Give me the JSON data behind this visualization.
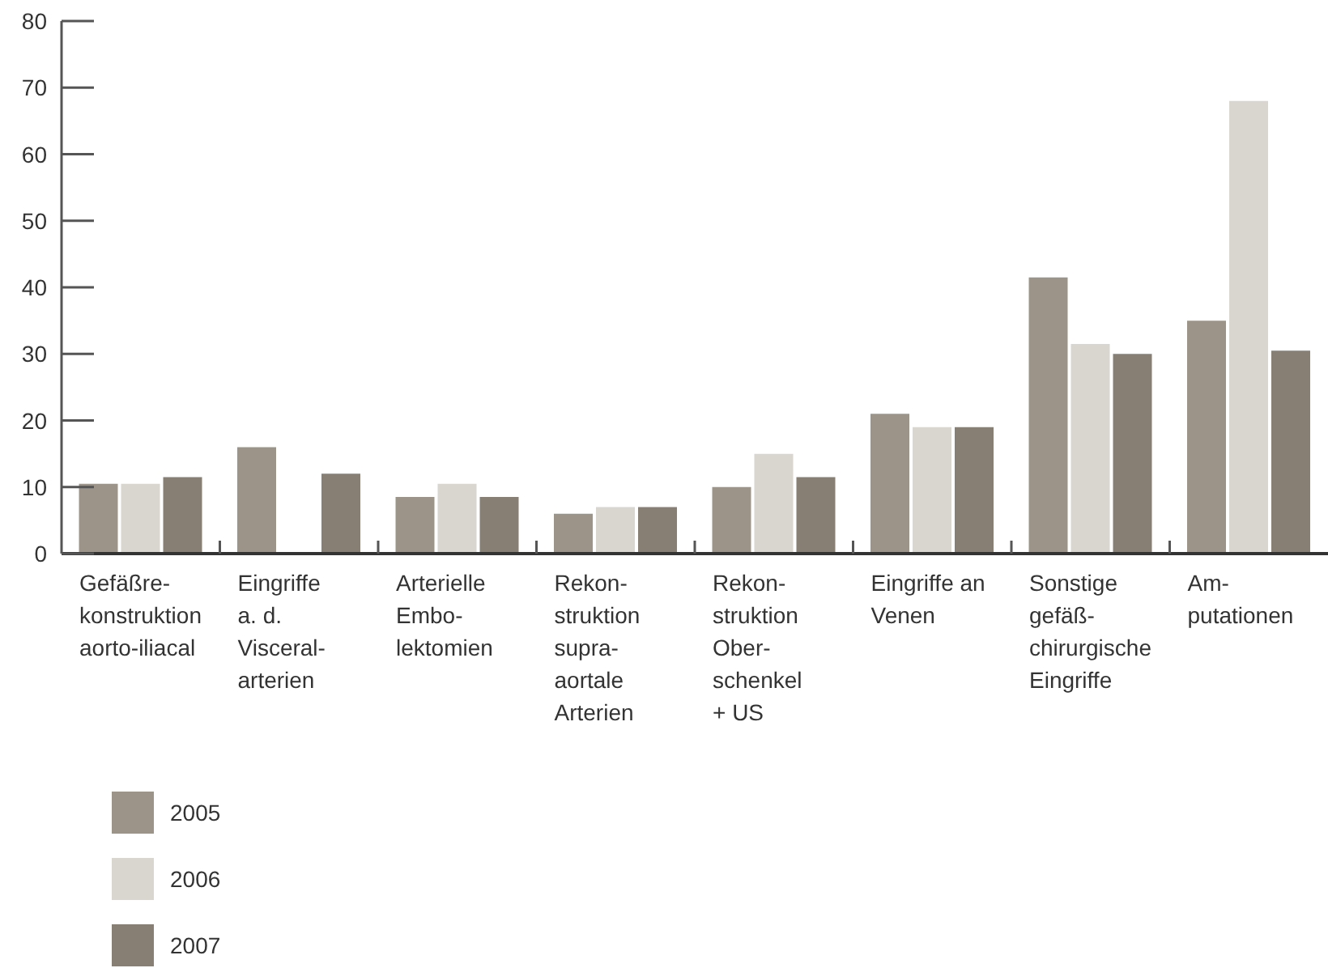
{
  "chart_data": {
    "type": "bar",
    "categories": [
      "Gefäßre-\nkonstruktion\naorto-iliacal",
      "Eingriffe\na. d.\nVisceral-\narterien",
      "Arterielle\nEmbo-\nlektomien",
      "Rekon-\nstruktion\nsupra-\naortale\nArterien",
      "Rekon-\nstruktion\nOber-\nschenkel\n+ US",
      "Eingriffe an\nVenen",
      "Sonstige\ngefäß-\nchirurgische\nEingriffe",
      "Am-\nputationen"
    ],
    "series": [
      {
        "name": "2005",
        "color": "#9c9488",
        "values": [
          10.5,
          16,
          8.5,
          6,
          10,
          21,
          41.5,
          35
        ]
      },
      {
        "name": "2006",
        "color": "#d9d5cf",
        "values": [
          10.5,
          null,
          10.5,
          7,
          15,
          19,
          31.5,
          68
        ]
      },
      {
        "name": "2007",
        "color": "#877f74",
        "values": [
          11.5,
          12,
          8.5,
          7,
          11.5,
          19,
          30,
          30.5
        ]
      }
    ],
    "ylim": [
      0,
      80
    ],
    "yticks": [
      0,
      10,
      20,
      30,
      40,
      50,
      60,
      70,
      80
    ],
    "legend": "bottom left"
  }
}
